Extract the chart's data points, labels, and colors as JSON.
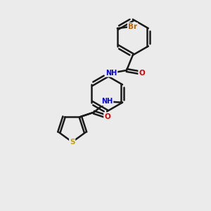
{
  "background_color": "#ebebeb",
  "bond_color": "#1a1a1a",
  "bond_width": 1.8,
  "atom_colors": {
    "C": "#1a1a1a",
    "N": "#0000e0",
    "O": "#e00000",
    "S": "#c8a000",
    "Br": "#c06000",
    "H": "#606060"
  },
  "font_size": 7.5,
  "fig_size": [
    3.0,
    3.0
  ],
  "dpi": 100,
  "xlim": [
    0.0,
    7.5
  ],
  "ylim": [
    0.0,
    8.5
  ]
}
